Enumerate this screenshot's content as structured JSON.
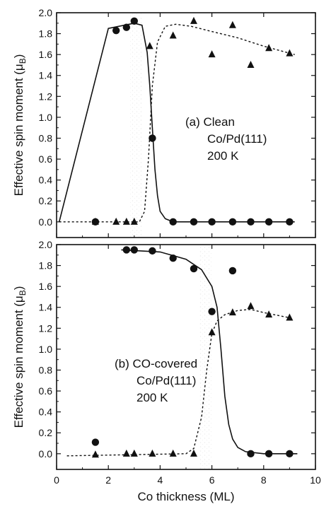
{
  "chart_data": [
    {
      "type": "scatter",
      "panel": "(a)",
      "annotation": [
        "(a)  Clean",
        "Co/Pd(111)",
        "200 K"
      ],
      "ylabel": "Effective spin moment (μB)",
      "xlabel": "",
      "xlim": [
        0,
        10
      ],
      "ylim": [
        -0.15,
        2.0
      ],
      "x_ticks": [
        0,
        2,
        4,
        6,
        8,
        10
      ],
      "y_ticks": [
        0.0,
        0.2,
        0.4,
        0.6,
        0.8,
        1.0,
        1.2,
        1.4,
        1.6,
        1.8,
        2.0
      ],
      "grid": false,
      "series": [
        {
          "marker": "circle",
          "x": [
            1.5,
            2.3,
            2.7,
            3.0,
            3.7,
            4.5,
            5.3,
            6.0,
            6.8,
            7.5,
            8.2,
            9.0
          ],
          "y": [
            0.0,
            1.83,
            1.86,
            1.92,
            0.8,
            0.0,
            0.0,
            0.0,
            0.0,
            0.0,
            0.0,
            0.0
          ]
        },
        {
          "marker": "triangle",
          "x": [
            1.5,
            2.3,
            2.7,
            3.0,
            3.6,
            4.5,
            5.3,
            6.0,
            6.8,
            7.5,
            8.2,
            9.0
          ],
          "y": [
            0.0,
            0.0,
            0.0,
            0.0,
            1.68,
            1.78,
            1.92,
            1.6,
            1.88,
            1.5,
            1.66,
            1.61
          ]
        }
      ],
      "fit_lines": [
        {
          "style": "solid",
          "x": [
            0.1,
            2.0,
            3.0,
            3.3,
            3.5,
            3.6,
            3.7,
            3.8,
            3.9,
            4.0,
            4.2,
            4.5,
            6.0,
            9.2
          ],
          "y": [
            0.0,
            1.85,
            1.9,
            1.88,
            1.62,
            1.3,
            0.9,
            0.5,
            0.25,
            0.1,
            0.03,
            0.0,
            0.0,
            0.0
          ]
        },
        {
          "style": "dashed",
          "x": [
            0.1,
            3.2,
            3.4,
            3.55,
            3.7,
            3.9,
            4.2,
            4.6,
            5.2,
            6.0,
            7.0,
            8.0,
            9.2
          ],
          "y": [
            0.0,
            0.0,
            0.1,
            0.6,
            1.3,
            1.72,
            1.87,
            1.89,
            1.87,
            1.82,
            1.76,
            1.68,
            1.6
          ]
        }
      ]
    },
    {
      "type": "scatter",
      "panel": "(b)",
      "annotation": [
        "(b)  CO-covered",
        "Co/Pd(111)",
        "200 K"
      ],
      "ylabel": "Effective spin moment (μB)",
      "xlabel": "Co thickness  (ML)",
      "xlim": [
        0,
        10
      ],
      "ylim": [
        -0.15,
        2.0
      ],
      "x_ticks": [
        0,
        2,
        4,
        6,
        8,
        10
      ],
      "y_ticks": [
        0.0,
        0.2,
        0.4,
        0.6,
        0.8,
        1.0,
        1.2,
        1.4,
        1.6,
        1.8,
        2.0
      ],
      "grid": false,
      "series": [
        {
          "marker": "circle",
          "x": [
            1.5,
            2.7,
            3.0,
            3.7,
            4.5,
            5.3,
            6.0,
            6.8,
            7.5,
            8.2,
            9.0
          ],
          "y": [
            0.11,
            1.95,
            1.95,
            1.94,
            1.87,
            1.77,
            1.36,
            1.75,
            0.0,
            0.0,
            0.0
          ],
          "note": "circle near 8.2 ML sits slightly below zero"
        },
        {
          "marker": "triangle",
          "x": [
            1.5,
            2.7,
            3.0,
            3.7,
            4.5,
            5.3,
            6.0,
            6.8,
            7.5,
            8.2,
            9.0
          ],
          "y": [
            -0.01,
            0.0,
            0.0,
            0.0,
            0.0,
            0.0,
            1.16,
            1.35,
            1.41,
            1.33,
            1.3
          ]
        }
      ],
      "fit_lines": [
        {
          "style": "solid",
          "x": [
            2.5,
            4.0,
            5.0,
            5.6,
            6.0,
            6.2,
            6.35,
            6.5,
            6.65,
            6.8,
            7.0,
            7.3,
            8.0,
            9.3
          ],
          "y": [
            1.95,
            1.93,
            1.86,
            1.76,
            1.6,
            1.4,
            1.0,
            0.55,
            0.28,
            0.14,
            0.06,
            0.02,
            0.0,
            0.0
          ]
        },
        {
          "style": "dashed",
          "x": [
            0.4,
            5.0,
            5.3,
            5.6,
            5.8,
            6.0,
            6.2,
            6.5,
            7.0,
            7.5,
            8.0,
            9.0
          ],
          "y": [
            -0.02,
            0.0,
            0.05,
            0.35,
            0.8,
            1.15,
            1.27,
            1.33,
            1.37,
            1.38,
            1.35,
            1.3
          ]
        }
      ]
    }
  ]
}
